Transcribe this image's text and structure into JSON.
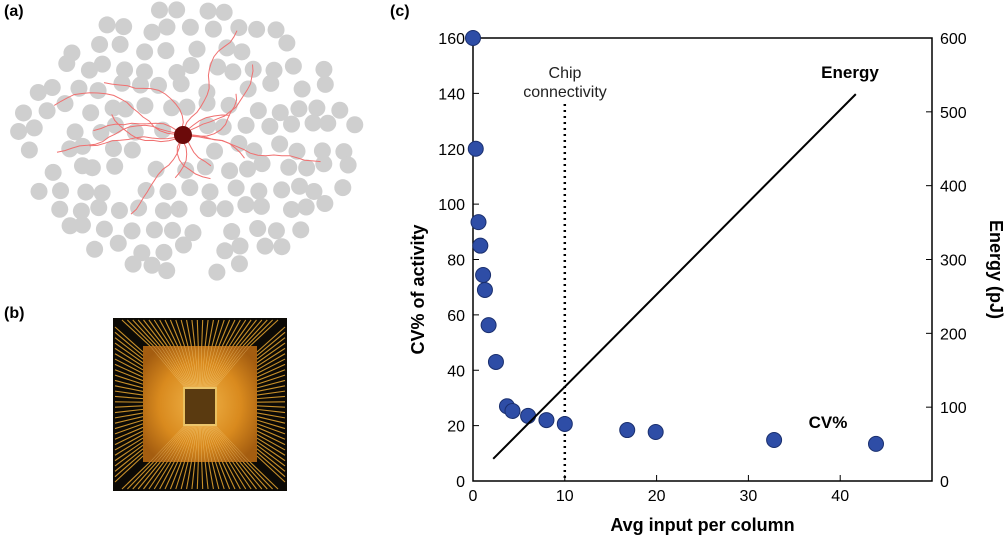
{
  "panels": [
    "(a)",
    "(b)",
    "(c)"
  ],
  "chart_data": {
    "type": "scatter",
    "x_label": "Avg input per column",
    "y_label": "CV% of activity",
    "y2_label": "Energy (pJ)",
    "xlim": [
      0,
      50
    ],
    "xticks": [
      0,
      10,
      20,
      30,
      40
    ],
    "ylim": [
      0,
      160
    ],
    "yticks": [
      0,
      20,
      40,
      60,
      80,
      100,
      120,
      140,
      160
    ],
    "y2lim": [
      0,
      600
    ],
    "y2ticks": [
      0,
      100,
      200,
      300,
      400,
      500,
      600
    ],
    "reference_line": {
      "x": 10,
      "label": "Chip connectivity"
    },
    "series": [
      {
        "name": "CV%",
        "color": "#2e4da6",
        "x": [
          0,
          0.3,
          0.6,
          0.8,
          1.1,
          1.3,
          1.7,
          2.5,
          3.7,
          4.3,
          6,
          8,
          10,
          16.8,
          19.9,
          32.8,
          43.9
        ],
        "values": [
          160,
          120,
          93.5,
          85,
          74.4,
          69,
          56.3,
          43,
          27,
          25.3,
          23.5,
          22,
          20.6,
          18.4,
          17.7,
          14.8,
          13.4
        ]
      },
      {
        "name": "Energy",
        "color": "#000000",
        "axis": "y2",
        "kind": "line",
        "x": [
          2.2,
          41.7
        ],
        "values": [
          30,
          524
        ]
      }
    ]
  }
}
